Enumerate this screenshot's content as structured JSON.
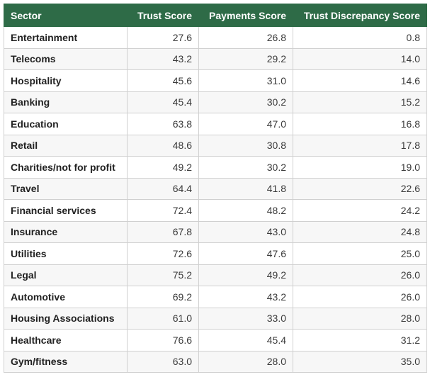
{
  "colors": {
    "header_bg": "#2e6b47",
    "header_text": "#ffffff",
    "row_alt_bg": "#f7f7f7",
    "border": "#d0d0d0"
  },
  "table": {
    "headers": [
      "Sector",
      "Trust Score",
      "Payments Score",
      "Trust Discrepancy Score"
    ],
    "rows": [
      [
        "Entertainment",
        "27.6",
        "26.8",
        "0.8"
      ],
      [
        "Telecoms",
        "43.2",
        "29.2",
        "14.0"
      ],
      [
        "Hospitality",
        "45.6",
        "31.0",
        "14.6"
      ],
      [
        "Banking",
        "45.4",
        "30.2",
        "15.2"
      ],
      [
        "Education",
        "63.8",
        "47.0",
        "16.8"
      ],
      [
        "Retail",
        "48.6",
        "30.8",
        "17.8"
      ],
      [
        "Charities/not for profit",
        "49.2",
        "30.2",
        "19.0"
      ],
      [
        "Travel",
        "64.4",
        "41.8",
        "22.6"
      ],
      [
        "Financial services",
        "72.4",
        "48.2",
        "24.2"
      ],
      [
        "Insurance",
        "67.8",
        "43.0",
        "24.8"
      ],
      [
        "Utilities",
        "72.6",
        "47.6",
        "25.0"
      ],
      [
        "Legal",
        "75.2",
        "49.2",
        "26.0"
      ],
      [
        "Automotive",
        "69.2",
        "43.2",
        "26.0"
      ],
      [
        "Housing Associations",
        "61.0",
        "33.0",
        "28.0"
      ],
      [
        "Healthcare",
        "76.6",
        "45.4",
        "31.2"
      ],
      [
        "Gym/fitness",
        "63.0",
        "28.0",
        "35.0"
      ]
    ]
  },
  "chart_data": {
    "type": "table",
    "columns": [
      "Sector",
      "Trust Score",
      "Payments Score",
      "Trust Discrepancy Score"
    ],
    "categories": [
      "Entertainment",
      "Telecoms",
      "Hospitality",
      "Banking",
      "Education",
      "Retail",
      "Charities/not for profit",
      "Travel",
      "Financial services",
      "Insurance",
      "Utilities",
      "Legal",
      "Automotive",
      "Housing Associations",
      "Healthcare",
      "Gym/fitness"
    ],
    "series": [
      {
        "name": "Trust Score",
        "values": [
          27.6,
          43.2,
          45.6,
          45.4,
          63.8,
          48.6,
          49.2,
          64.4,
          72.4,
          67.8,
          72.6,
          75.2,
          69.2,
          61.0,
          76.6,
          63.0
        ]
      },
      {
        "name": "Payments Score",
        "values": [
          26.8,
          29.2,
          31.0,
          30.2,
          47.0,
          30.8,
          30.2,
          41.8,
          48.2,
          43.0,
          47.6,
          49.2,
          43.2,
          33.0,
          45.4,
          28.0
        ]
      },
      {
        "name": "Trust Discrepancy Score",
        "values": [
          0.8,
          14.0,
          14.6,
          15.2,
          16.8,
          17.8,
          19.0,
          22.6,
          24.2,
          24.8,
          25.0,
          26.0,
          26.0,
          28.0,
          31.2,
          35.0
        ]
      }
    ]
  }
}
